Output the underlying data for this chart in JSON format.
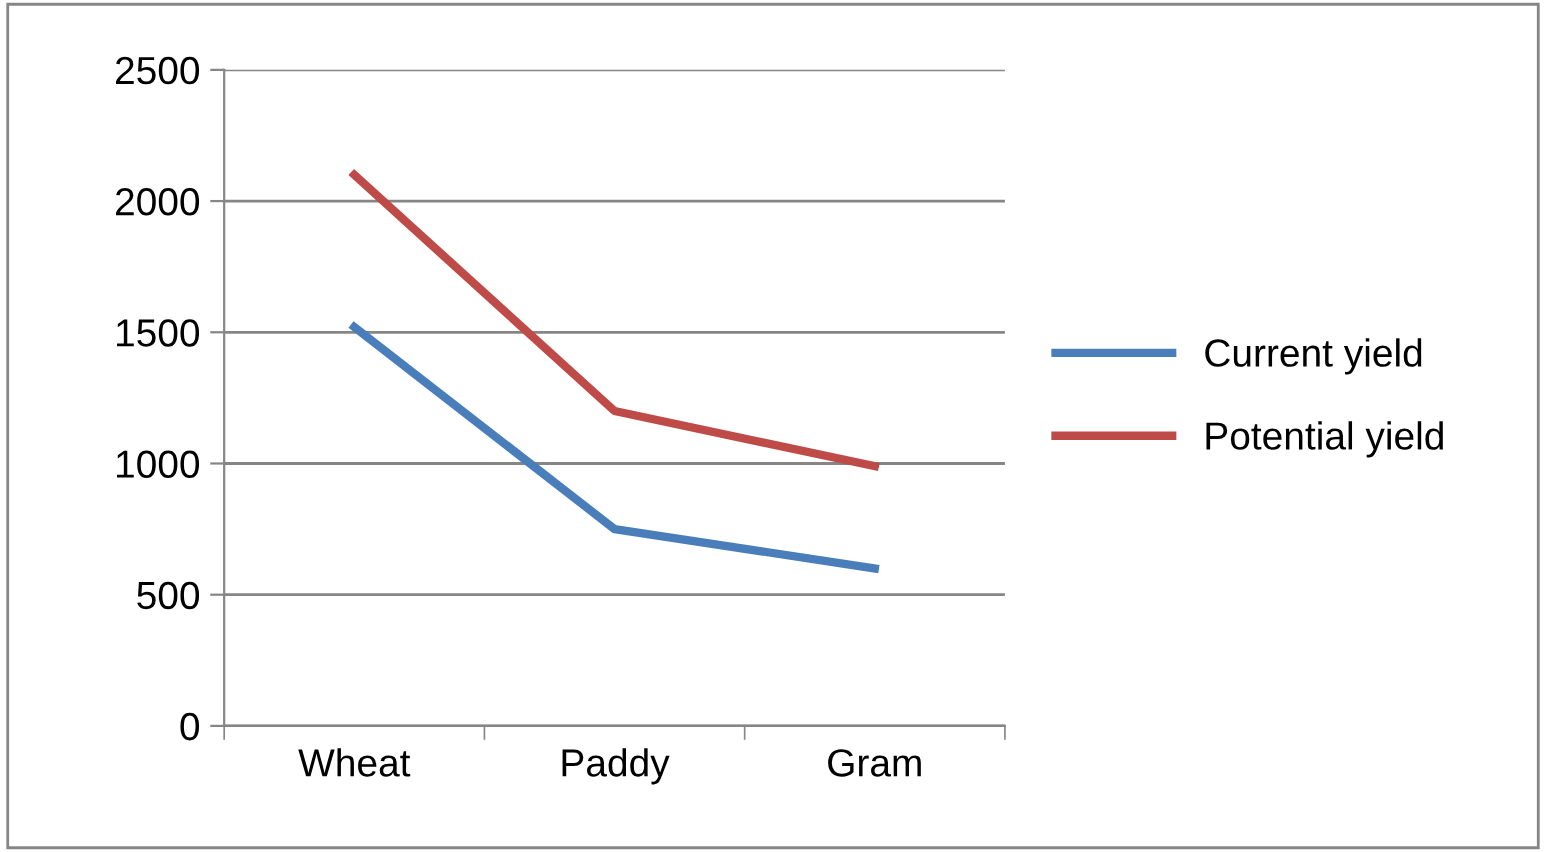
{
  "chart_data": {
    "type": "line",
    "categories": [
      "Wheat",
      "Paddy",
      "Gram"
    ],
    "series": [
      {
        "name": "Current yield",
        "color": "#4a7ebb",
        "values": [
          1520,
          750,
          600
        ]
      },
      {
        "name": "Potential yield",
        "color": "#be4b48",
        "values": [
          2100,
          1200,
          990
        ]
      }
    ],
    "ylim": [
      0,
      2500
    ],
    "yticks": [
      0,
      500,
      1000,
      1500,
      2000,
      2500
    ],
    "grid": "y",
    "legend": "right",
    "marker": "none",
    "line_style": "solid"
  }
}
